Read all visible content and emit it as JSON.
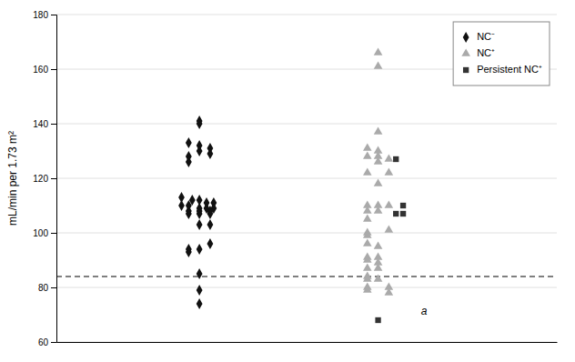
{
  "chart_data": {
    "type": "scatter",
    "ylabel": "mL/min per 1.73 m²",
    "ylim": [
      60,
      180
    ],
    "yticks": [
      60,
      80,
      100,
      120,
      140,
      160,
      180
    ],
    "xlim": [
      0.6,
      2.0
    ],
    "tick_labels": "y",
    "grid": true,
    "legend": "upper right",
    "hline": {
      "value": 84,
      "line_style": "dashed"
    },
    "annotations": [
      {
        "text": "a",
        "x": 1.62,
        "y": 71
      }
    ],
    "series": [
      {
        "name": "NC⁻",
        "color": "#111111",
        "marker": "diamond",
        "x": [
          1.0,
          1.0,
          0.97,
          1.0,
          1.03,
          1.0,
          1.03,
          0.97,
          0.97,
          0.95,
          0.98,
          1.0,
          1.02,
          1.04,
          0.95,
          0.97,
          1.0,
          1.02,
          1.04,
          0.97,
          1.0,
          1.03,
          0.97,
          1.0,
          1.03,
          1.0,
          1.03,
          0.97,
          1.0,
          1.03,
          0.97,
          1.0,
          1.0,
          1.0
        ],
        "values": [
          141,
          140,
          133,
          132,
          131,
          130,
          129,
          128,
          126,
          113,
          112,
          112,
          111,
          111,
          110,
          110,
          109,
          109,
          109,
          108,
          108,
          108,
          107,
          107,
          107,
          103,
          103,
          94,
          94,
          96,
          93,
          85,
          79,
          74
        ]
      },
      {
        "name": "NC⁺",
        "color": "#aaaaaa",
        "marker": "triangle",
        "x": [
          1.5,
          1.5,
          1.5,
          1.47,
          1.5,
          1.47,
          1.5,
          1.53,
          1.5,
          1.47,
          1.53,
          1.5,
          1.47,
          1.5,
          1.53,
          1.47,
          1.5,
          1.47,
          1.47,
          1.53,
          1.47,
          1.47,
          1.5,
          1.47,
          1.5,
          1.47,
          1.5,
          1.47,
          1.5,
          1.47,
          1.47,
          1.5,
          1.47,
          1.53,
          1.47,
          1.53
        ],
        "values": [
          166,
          161,
          137,
          131,
          130,
          128,
          128,
          127,
          126,
          122,
          122,
          118,
          110,
          110,
          110,
          108,
          108,
          105,
          100,
          101,
          99,
          96,
          95,
          91,
          91,
          90,
          89,
          87,
          87,
          84,
          83,
          83,
          80,
          80,
          79,
          78
        ]
      },
      {
        "name": "Persistent NC⁺",
        "color": "#333333",
        "marker": "square",
        "x": [
          1.55,
          1.57,
          1.55,
          1.57,
          1.5
        ],
        "values": [
          127,
          110,
          107,
          107,
          68
        ]
      }
    ]
  }
}
